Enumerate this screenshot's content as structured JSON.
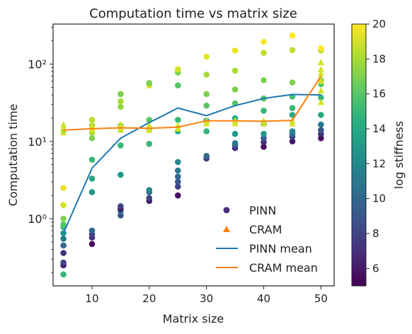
{
  "chart_data": {
    "type": "scatter",
    "title": "Computation time vs matrix size",
    "xlabel": "Matrix size",
    "ylabel": "Computation time",
    "xlim": [
      3.2,
      52.3
    ],
    "ylim": [
      0.135,
      330
    ],
    "yscale": "log",
    "grid": false,
    "legend_placement": "lower-right",
    "x_ticks": [
      10,
      20,
      30,
      40,
      50
    ],
    "y_ticks": [
      {
        "value": 1,
        "label": "10⁰"
      },
      {
        "value": 10,
        "label": "10¹"
      },
      {
        "value": 100,
        "label": "10²"
      }
    ],
    "colorbar": {
      "label": "log stiffness",
      "min": 5,
      "max": 20,
      "ticks": [
        6,
        8,
        10,
        12,
        14,
        16,
        18,
        20
      ],
      "colormap": "viridis"
    },
    "legend": [
      {
        "name": "PINN",
        "marker": "circle"
      },
      {
        "name": "CRAM",
        "marker": "triangle"
      },
      {
        "name": "PINN mean",
        "color": "#1f77b4"
      },
      {
        "name": "CRAM mean",
        "color": "#ff7f0e"
      }
    ],
    "series": [
      {
        "name": "PINN",
        "marker": "circle",
        "points": [
          {
            "x": 5,
            "y": 0.19,
            "c": 15
          },
          {
            "x": 5,
            "y": 0.25,
            "c": 6
          },
          {
            "x": 5,
            "y": 0.27,
            "c": 8
          },
          {
            "x": 5,
            "y": 0.36,
            "c": 7
          },
          {
            "x": 5,
            "y": 0.45,
            "c": 10
          },
          {
            "x": 5,
            "y": 0.55,
            "c": 11
          },
          {
            "x": 5,
            "y": 0.65,
            "c": 13
          },
          {
            "x": 5,
            "y": 0.78,
            "c": 15
          },
          {
            "x": 5,
            "y": 0.84,
            "c": 16
          },
          {
            "x": 5,
            "y": 1.0,
            "c": 17
          },
          {
            "x": 5,
            "y": 1.5,
            "c": 19
          },
          {
            "x": 5,
            "y": 2.5,
            "c": 19.5
          },
          {
            "x": 10,
            "y": 0.47,
            "c": 5.5
          },
          {
            "x": 10,
            "y": 0.57,
            "c": 7
          },
          {
            "x": 10,
            "y": 0.63,
            "c": 8
          },
          {
            "x": 10,
            "y": 0.7,
            "c": 10
          },
          {
            "x": 10,
            "y": 2.2,
            "c": 13
          },
          {
            "x": 10,
            "y": 3.3,
            "c": 14
          },
          {
            "x": 10,
            "y": 5.8,
            "c": 15
          },
          {
            "x": 10,
            "y": 11,
            "c": 17
          },
          {
            "x": 10,
            "y": 13,
            "c": 18
          },
          {
            "x": 10,
            "y": 16,
            "c": 17.5
          },
          {
            "x": 10,
            "y": 19,
            "c": 18.5
          },
          {
            "x": 15,
            "y": 1.1,
            "c": 9
          },
          {
            "x": 15,
            "y": 1.25,
            "c": 10
          },
          {
            "x": 15,
            "y": 1.35,
            "c": 6
          },
          {
            "x": 15,
            "y": 1.45,
            "c": 8
          },
          {
            "x": 15,
            "y": 3.7,
            "c": 13
          },
          {
            "x": 15,
            "y": 8.9,
            "c": 15
          },
          {
            "x": 15,
            "y": 16,
            "c": 16
          },
          {
            "x": 15,
            "y": 28,
            "c": 17.5
          },
          {
            "x": 15,
            "y": 33,
            "c": 18
          },
          {
            "x": 15,
            "y": 41,
            "c": 17
          },
          {
            "x": 20,
            "y": 1.7,
            "c": 6
          },
          {
            "x": 20,
            "y": 1.85,
            "c": 8
          },
          {
            "x": 20,
            "y": 2.2,
            "c": 10
          },
          {
            "x": 20,
            "y": 2.35,
            "c": 12
          },
          {
            "x": 20,
            "y": 9.3,
            "c": 15
          },
          {
            "x": 20,
            "y": 14.5,
            "c": 14
          },
          {
            "x": 20,
            "y": 19,
            "c": 16
          },
          {
            "x": 20,
            "y": 53,
            "c": 19
          },
          {
            "x": 20,
            "y": 57,
            "c": 17
          },
          {
            "x": 25,
            "y": 2.0,
            "c": 5.5
          },
          {
            "x": 25,
            "y": 2.6,
            "c": 8
          },
          {
            "x": 25,
            "y": 3.0,
            "c": 9
          },
          {
            "x": 25,
            "y": 3.5,
            "c": 10
          },
          {
            "x": 25,
            "y": 4.2,
            "c": 11
          },
          {
            "x": 25,
            "y": 5.4,
            "c": 12
          },
          {
            "x": 25,
            "y": 13.5,
            "c": 14
          },
          {
            "x": 25,
            "y": 19,
            "c": 15
          },
          {
            "x": 25,
            "y": 53,
            "c": 16
          },
          {
            "x": 25,
            "y": 78,
            "c": 17
          },
          {
            "x": 25,
            "y": 86,
            "c": 19
          },
          {
            "x": 30,
            "y": 6.0,
            "c": 8
          },
          {
            "x": 30,
            "y": 6.5,
            "c": 10
          },
          {
            "x": 30,
            "y": 13.5,
            "c": 15
          },
          {
            "x": 30,
            "y": 18.5,
            "c": 13
          },
          {
            "x": 30,
            "y": 29,
            "c": 16
          },
          {
            "x": 30,
            "y": 41,
            "c": 17
          },
          {
            "x": 30,
            "y": 73,
            "c": 18
          },
          {
            "x": 30,
            "y": 125,
            "c": 19.5
          },
          {
            "x": 35,
            "y": 8.2,
            "c": 7
          },
          {
            "x": 35,
            "y": 9.0,
            "c": 9
          },
          {
            "x": 35,
            "y": 9.5,
            "c": 11
          },
          {
            "x": 35,
            "y": 12.5,
            "c": 13
          },
          {
            "x": 35,
            "y": 20,
            "c": 14
          },
          {
            "x": 35,
            "y": 31,
            "c": 16
          },
          {
            "x": 35,
            "y": 47,
            "c": 17
          },
          {
            "x": 35,
            "y": 82,
            "c": 18
          },
          {
            "x": 35,
            "y": 150,
            "c": 19.5
          },
          {
            "x": 40,
            "y": 8.5,
            "c": 5.5
          },
          {
            "x": 40,
            "y": 9.8,
            "c": 7
          },
          {
            "x": 40,
            "y": 11,
            "c": 9
          },
          {
            "x": 40,
            "y": 12.5,
            "c": 13
          },
          {
            "x": 40,
            "y": 17,
            "c": 14
          },
          {
            "x": 40,
            "y": 25,
            "c": 15
          },
          {
            "x": 40,
            "y": 36,
            "c": 16
          },
          {
            "x": 40,
            "y": 62,
            "c": 17
          },
          {
            "x": 40,
            "y": 140,
            "c": 18.5
          },
          {
            "x": 40,
            "y": 195,
            "c": 19.8
          },
          {
            "x": 45,
            "y": 10,
            "c": 6
          },
          {
            "x": 45,
            "y": 11.5,
            "c": 8
          },
          {
            "x": 45,
            "y": 12.5,
            "c": 10
          },
          {
            "x": 45,
            "y": 13.5,
            "c": 12
          },
          {
            "x": 45,
            "y": 22,
            "c": 14
          },
          {
            "x": 45,
            "y": 27,
            "c": 15
          },
          {
            "x": 45,
            "y": 38,
            "c": 15.5
          },
          {
            "x": 45,
            "y": 58,
            "c": 17
          },
          {
            "x": 45,
            "y": 152,
            "c": 18.5
          },
          {
            "x": 45,
            "y": 235,
            "c": 20
          },
          {
            "x": 50,
            "y": 11,
            "c": 5.5
          },
          {
            "x": 50,
            "y": 12.5,
            "c": 7
          },
          {
            "x": 50,
            "y": 14,
            "c": 9
          },
          {
            "x": 50,
            "y": 16.5,
            "c": 11
          },
          {
            "x": 50,
            "y": 22,
            "c": 14
          },
          {
            "x": 50,
            "y": 37,
            "c": 15
          },
          {
            "x": 50,
            "y": 55,
            "c": 16
          },
          {
            "x": 50,
            "y": 62,
            "c": 17
          },
          {
            "x": 50,
            "y": 150,
            "c": 18.5
          },
          {
            "x": 50,
            "y": 160,
            "c": 20
          }
        ]
      },
      {
        "name": "CRAM",
        "marker": "triangle",
        "points": [
          {
            "x": 5,
            "y": 13,
            "c": 19
          },
          {
            "x": 5,
            "y": 14,
            "c": 18
          },
          {
            "x": 5,
            "y": 15,
            "c": 19
          },
          {
            "x": 5,
            "y": 16.5,
            "c": 19
          },
          {
            "x": 10,
            "y": 14,
            "c": 19
          },
          {
            "x": 10,
            "y": 15,
            "c": 19
          },
          {
            "x": 10,
            "y": 16,
            "c": 19
          },
          {
            "x": 15,
            "y": 14,
            "c": 19
          },
          {
            "x": 15,
            "y": 15,
            "c": 19
          },
          {
            "x": 15,
            "y": 16.5,
            "c": 19
          },
          {
            "x": 20,
            "y": 14,
            "c": 19
          },
          {
            "x": 20,
            "y": 15,
            "c": 19
          },
          {
            "x": 20,
            "y": 16,
            "c": 19
          },
          {
            "x": 25,
            "y": 14.5,
            "c": 19
          },
          {
            "x": 25,
            "y": 16,
            "c": 19
          },
          {
            "x": 30,
            "y": 17,
            "c": 19
          },
          {
            "x": 30,
            "y": 18.5,
            "c": 19
          },
          {
            "x": 35,
            "y": 17,
            "c": 19
          },
          {
            "x": 35,
            "y": 18.5,
            "c": 19
          },
          {
            "x": 40,
            "y": 17,
            "c": 19
          },
          {
            "x": 40,
            "y": 18.5,
            "c": 19
          },
          {
            "x": 45,
            "y": 17,
            "c": 19
          },
          {
            "x": 45,
            "y": 18.5,
            "c": 19
          },
          {
            "x": 50,
            "y": 32,
            "c": 19
          },
          {
            "x": 50,
            "y": 45,
            "c": 19
          },
          {
            "x": 50,
            "y": 60,
            "c": 19
          },
          {
            "x": 50,
            "y": 75,
            "c": 19
          },
          {
            "x": 50,
            "y": 85,
            "c": 19
          },
          {
            "x": 50,
            "y": 105,
            "c": 19
          }
        ]
      },
      {
        "name": "PINN mean",
        "type": "line",
        "color": "#1f77b4",
        "points": [
          {
            "x": 5,
            "y": 0.65
          },
          {
            "x": 10,
            "y": 4.5
          },
          {
            "x": 15,
            "y": 11
          },
          {
            "x": 20,
            "y": 17.5
          },
          {
            "x": 25,
            "y": 27
          },
          {
            "x": 30,
            "y": 21.5
          },
          {
            "x": 35,
            "y": 29
          },
          {
            "x": 40,
            "y": 36
          },
          {
            "x": 45,
            "y": 40.5
          },
          {
            "x": 50,
            "y": 40
          }
        ]
      },
      {
        "name": "CRAM mean",
        "type": "line",
        "color": "#ff7f0e",
        "points": [
          {
            "x": 5,
            "y": 14
          },
          {
            "x": 10,
            "y": 14.6
          },
          {
            "x": 15,
            "y": 15
          },
          {
            "x": 20,
            "y": 14.8
          },
          {
            "x": 25,
            "y": 15.3
          },
          {
            "x": 30,
            "y": 18.5
          },
          {
            "x": 35,
            "y": 18.5
          },
          {
            "x": 40,
            "y": 18.2
          },
          {
            "x": 45,
            "y": 18.7
          },
          {
            "x": 50,
            "y": 70
          }
        ]
      }
    ]
  }
}
